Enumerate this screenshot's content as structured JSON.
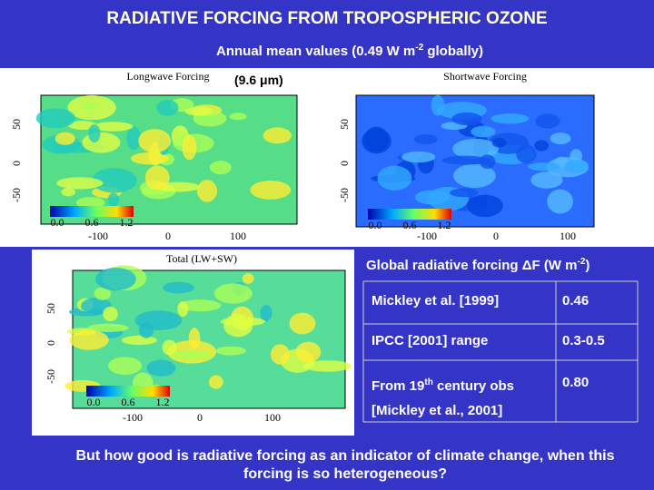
{
  "title": "RADIATIVE FORCING FROM TROPOSPHERIC OZONE",
  "subtitle": {
    "before": "Annual mean values (0.49 W m",
    "sup": "-2",
    "after": " globally)"
  },
  "annotation": "(9.6 μm)",
  "maps": [
    {
      "title": "Longwave Forcing",
      "yticks": [
        "50",
        "0",
        "-50"
      ],
      "xticks": [
        "-100",
        "0",
        "100"
      ],
      "colorbar": [
        "0.0",
        "0.6",
        "1.2"
      ]
    },
    {
      "title": "Shortwave Forcing",
      "yticks": [
        "50",
        "0",
        "-50"
      ],
      "xticks": [
        "-100",
        "0",
        "100"
      ],
      "colorbar": [
        "0.0",
        "0.6",
        "1.2"
      ]
    },
    {
      "title": "Total (LW+SW)",
      "yticks": [
        "50",
        "0",
        "-50"
      ],
      "xticks": [
        "-100",
        "0",
        "100"
      ],
      "colorbar": [
        "0.0",
        "0.6",
        "1.2"
      ]
    }
  ],
  "table": {
    "header": {
      "before": "Global radiative forcing ΔF (W m",
      "sup": "-2",
      "after": ")"
    },
    "rows": [
      [
        {
          "before": "Mickley et al. [1999]"
        },
        "0.46"
      ],
      [
        {
          "before": "IPCC [2001] range"
        },
        "0.3-0.5"
      ],
      [
        {
          "before": "From 19",
          "sup": "th",
          "after": " century obs [Mickley et al., 2001]"
        },
        "0.80"
      ]
    ]
  },
  "footer": "But how good is radiative forcing as an indicator of climate change, when this forcing is so heterogeneous?"
}
